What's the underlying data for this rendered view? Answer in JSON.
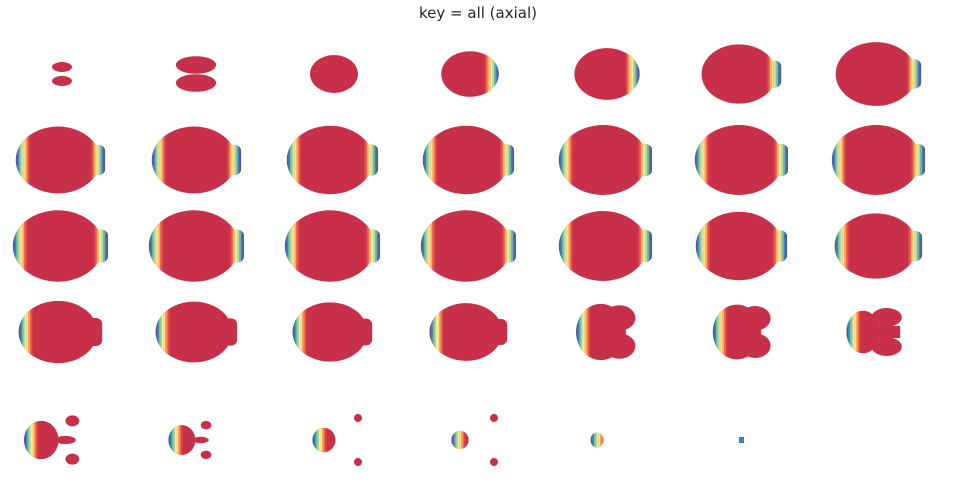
{
  "figure": {
    "title": "key = all (axial)"
  },
  "colors": {
    "brain": "#c8304a",
    "brain_dark": "#b52545",
    "spectral": [
      "#5e4fa2",
      "#3288bd",
      "#66c2a5",
      "#abdda4",
      "#e6f598",
      "#fee08b",
      "#fdae61",
      "#f46d43",
      "#d53e4f"
    ]
  },
  "slices": [
    {
      "id": 1,
      "shape": "tiny-pair",
      "scale": 0.22,
      "band": 0
    },
    {
      "id": 2,
      "shape": "butterfly",
      "scale": 0.42,
      "band": 0
    },
    {
      "id": 3,
      "shape": "blob",
      "scale": 0.5,
      "band": 0
    },
    {
      "id": 4,
      "shape": "blob",
      "scale": 0.6,
      "band": 1
    },
    {
      "id": 5,
      "shape": "blob",
      "scale": 0.68,
      "band": 1
    },
    {
      "id": 6,
      "shape": "oval",
      "scale": 0.78,
      "band": 1
    },
    {
      "id": 7,
      "shape": "oval",
      "scale": 0.84,
      "band": 1
    },
    {
      "id": 8,
      "shape": "oval",
      "scale": 0.88,
      "band": 2
    },
    {
      "id": 9,
      "shape": "oval",
      "scale": 0.88,
      "band": 2
    },
    {
      "id": 10,
      "shape": "oval",
      "scale": 0.9,
      "band": 2
    },
    {
      "id": 11,
      "shape": "oval",
      "scale": 0.9,
      "band": 2
    },
    {
      "id": 12,
      "shape": "oval",
      "scale": 0.92,
      "band": 2
    },
    {
      "id": 13,
      "shape": "oval",
      "scale": 0.92,
      "band": 2
    },
    {
      "id": 14,
      "shape": "oval",
      "scale": 0.92,
      "band": 2
    },
    {
      "id": 15,
      "shape": "oval",
      "scale": 0.94,
      "band": 3
    },
    {
      "id": 16,
      "shape": "oval",
      "scale": 0.94,
      "band": 3
    },
    {
      "id": 17,
      "shape": "oval",
      "scale": 0.94,
      "band": 3
    },
    {
      "id": 18,
      "shape": "oval",
      "scale": 0.94,
      "band": 3
    },
    {
      "id": 19,
      "shape": "oval",
      "scale": 0.92,
      "band": 3
    },
    {
      "id": 20,
      "shape": "oval",
      "scale": 0.9,
      "band": 3
    },
    {
      "id": 21,
      "shape": "oval",
      "scale": 0.86,
      "band": 3
    },
    {
      "id": 22,
      "shape": "round",
      "scale": 0.82,
      "band": 4
    },
    {
      "id": 23,
      "shape": "round",
      "scale": 0.8,
      "band": 4
    },
    {
      "id": 24,
      "shape": "round",
      "scale": 0.78,
      "band": 4
    },
    {
      "id": 25,
      "shape": "round",
      "scale": 0.76,
      "band": 4
    },
    {
      "id": 26,
      "shape": "lobed",
      "scale": 0.74,
      "band": 4
    },
    {
      "id": 27,
      "shape": "lobed",
      "scale": 0.72,
      "band": 4
    },
    {
      "id": 28,
      "shape": "cerebellum",
      "scale": 0.7,
      "band": 4
    },
    {
      "id": 29,
      "shape": "fragments",
      "scale": 0.72,
      "band": 4
    },
    {
      "id": 30,
      "shape": "fragments",
      "scale": 0.56,
      "band": 4
    },
    {
      "id": 31,
      "shape": "small-frag",
      "scale": 0.4,
      "band": 4
    },
    {
      "id": 32,
      "shape": "small-frag",
      "scale": 0.3,
      "band": 4
    },
    {
      "id": 33,
      "shape": "dot-band",
      "scale": 0.22,
      "band": 4
    },
    {
      "id": 34,
      "shape": "dot",
      "scale": 0.08,
      "band": 4
    }
  ]
}
